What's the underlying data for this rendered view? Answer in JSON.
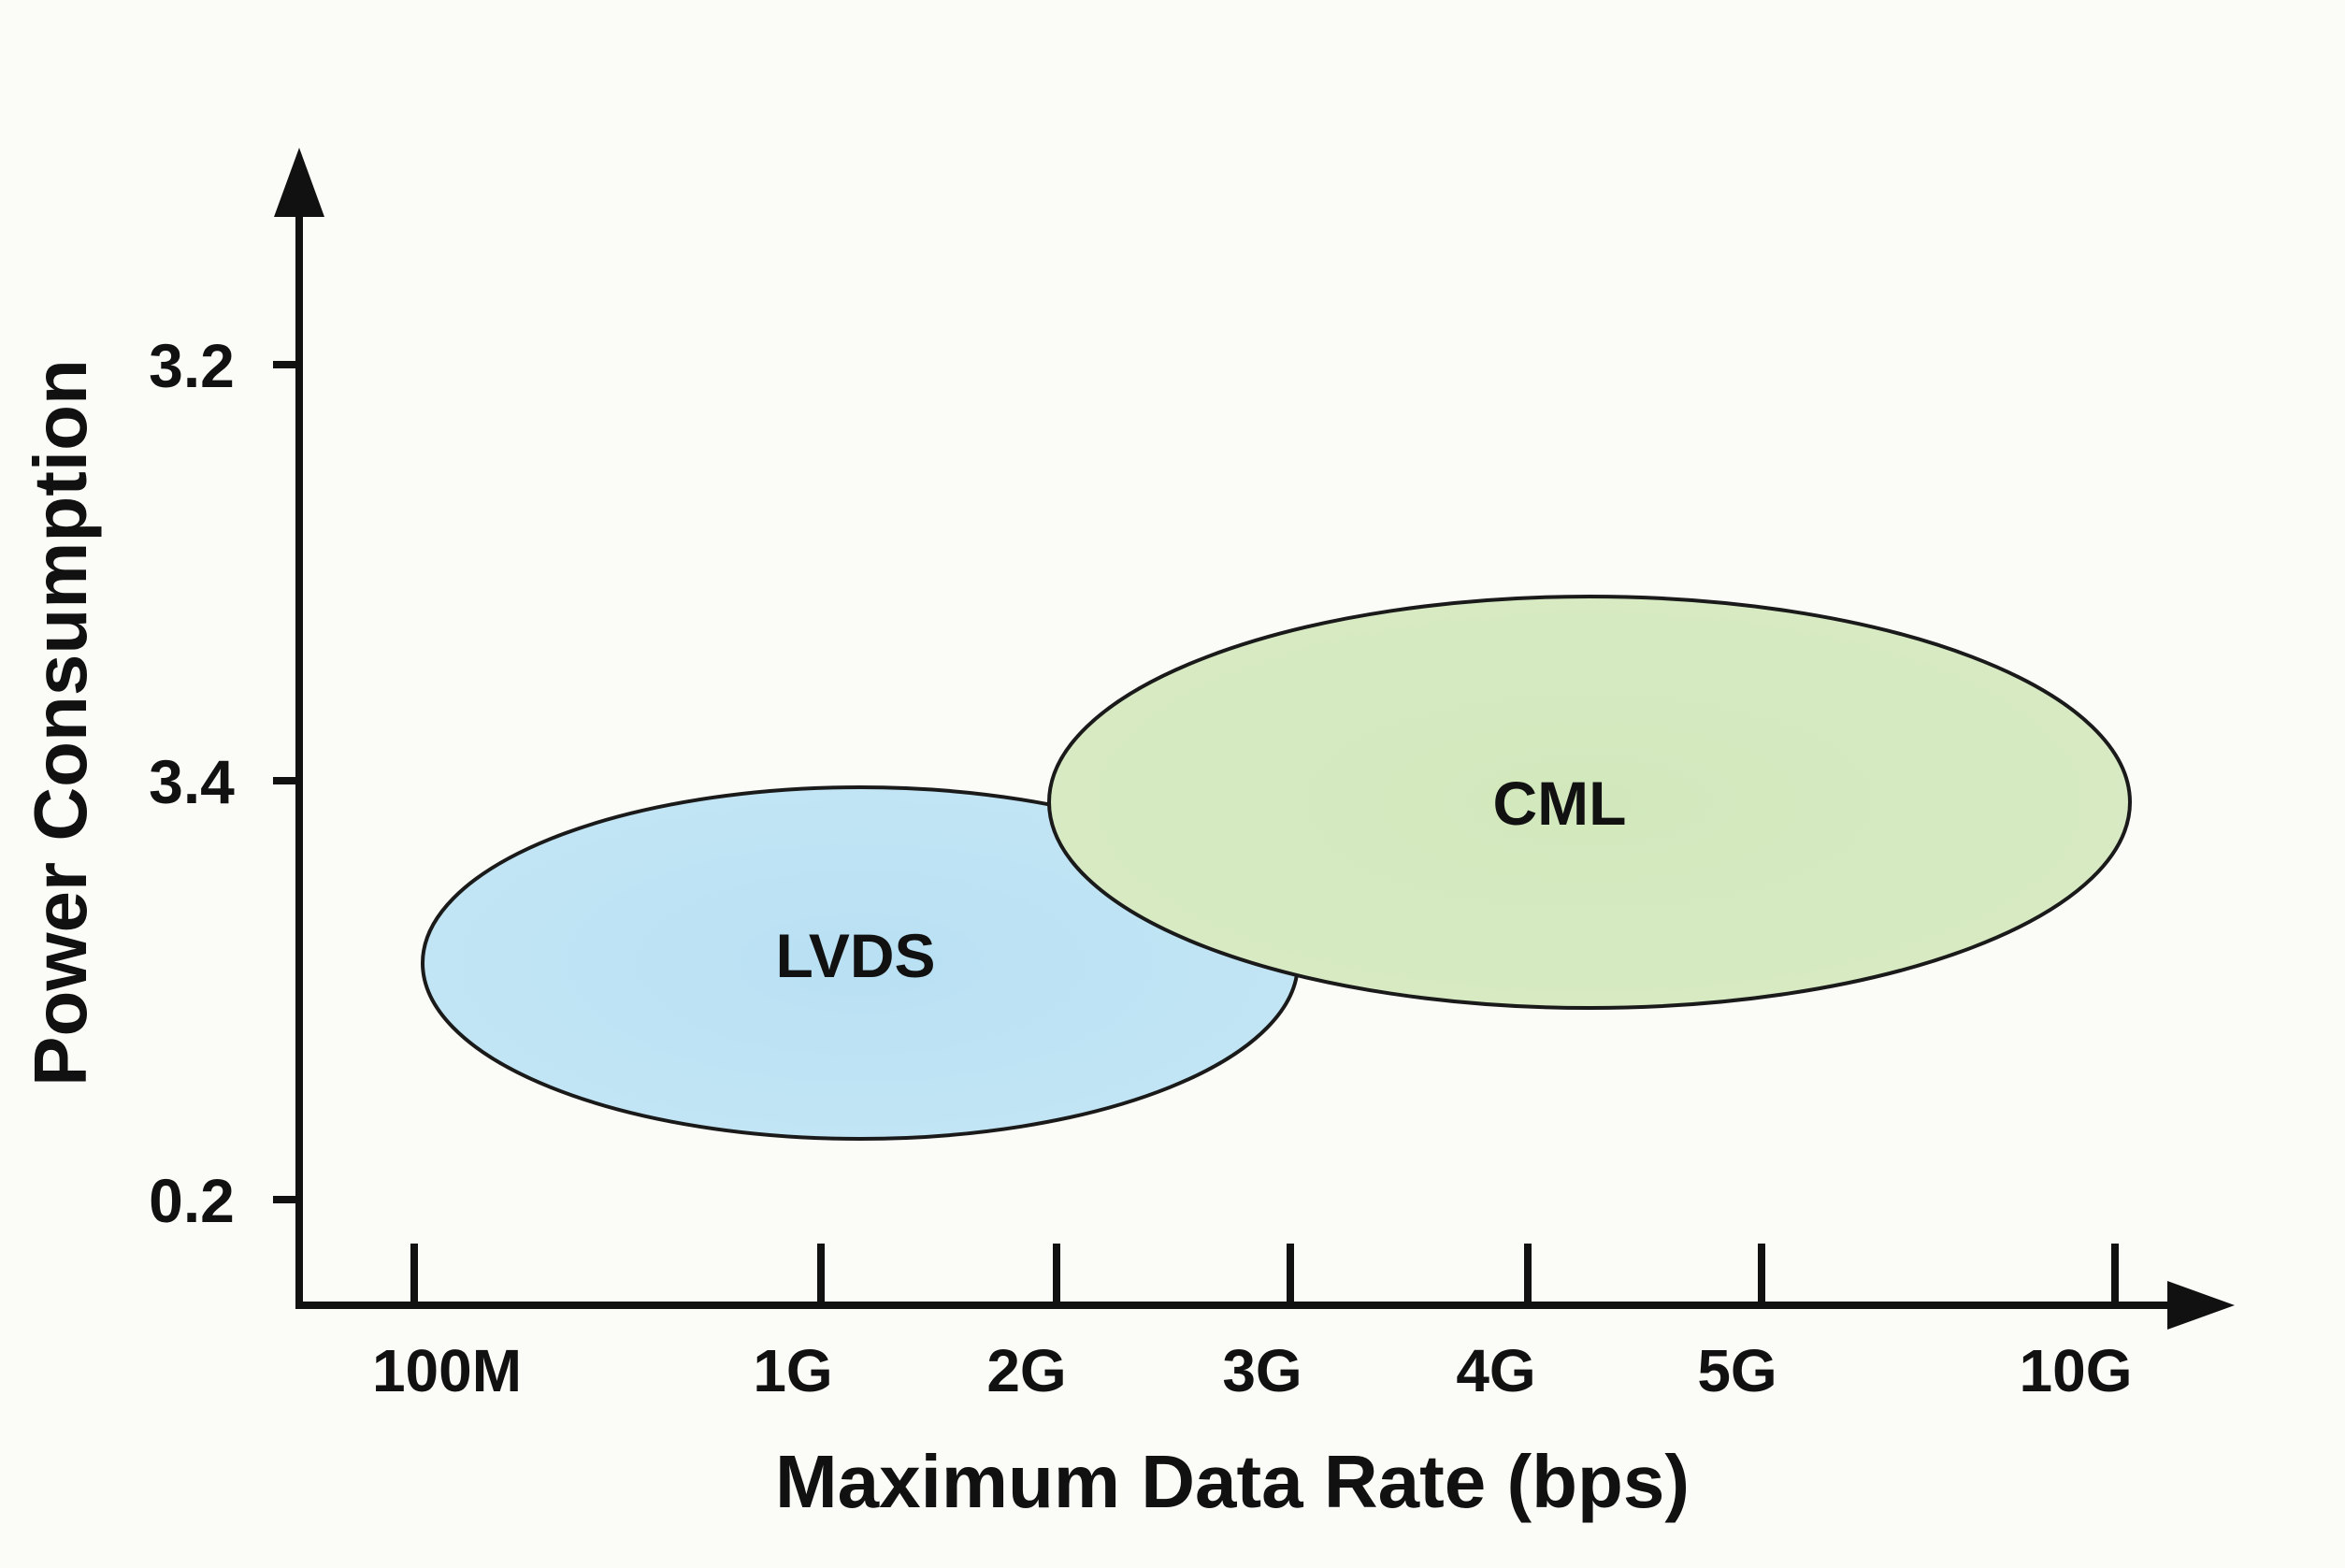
{
  "chart_data": {
    "type": "scatter",
    "title": "",
    "xlabel": "Maximum Data Rate (bps)",
    "ylabel": "Power Consumption",
    "x_ticks": [
      "100M",
      "1G",
      "2G",
      "3G",
      "4G",
      "5G",
      "10G"
    ],
    "y_ticks": [
      "3.2",
      "3.4",
      "0.2"
    ],
    "regions": [
      {
        "name": "LVDS",
        "x_range": [
          "100M",
          "3G"
        ],
        "y_range": [
          "below 0.2–3.4 midpoint",
          "3.4"
        ],
        "color": "#bde3f4"
      },
      {
        "name": "CML",
        "x_range": [
          "2G",
          "10G"
        ],
        "y_range": [
          "between 3.4 and 0.2",
          "between 3.2 and 3.4"
        ],
        "color": "#d5e9c0"
      }
    ],
    "grid": false,
    "legend": "none"
  },
  "colors": {
    "background": "#fbfbf7",
    "axis": "#111111",
    "lvds_fill": "#bde3f4",
    "cml_fill": "#d5e9c0",
    "outline": "#1a1a1a"
  }
}
